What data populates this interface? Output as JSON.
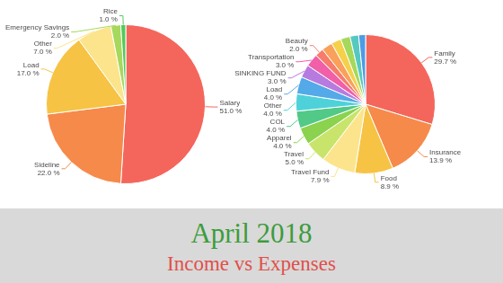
{
  "chart_data": [
    {
      "type": "pie",
      "categories": [
        "Salary",
        "Sideline",
        "Load",
        "Other",
        "Emergency Savings",
        "Rice"
      ],
      "values": [
        51.0,
        22.0,
        17.0,
        7.0,
        2.0,
        1.0
      ],
      "value_labels": [
        "51.0 %",
        "22.0 %",
        "17.0 %",
        "7.0 %",
        "2.0 %",
        "1.0 %"
      ],
      "colors": [
        "#f4665c",
        "#f68a4b",
        "#f6c344",
        "#fce48c",
        "#a6d85c",
        "#52c95a"
      ],
      "data_labels": true
    },
    {
      "type": "pie",
      "categories": [
        "Family",
        "Insurance",
        "Food",
        "Travel Fund",
        "Travel",
        "Apparel",
        "COL",
        "Other",
        "Load",
        "SINKING FUND",
        "Transportation",
        "Beauty",
        null,
        null,
        null,
        null,
        null
      ],
      "values": [
        29.7,
        13.9,
        8.9,
        7.9,
        5.0,
        4.0,
        4.0,
        4.0,
        4.0,
        3.0,
        3.0,
        2.0,
        2.5,
        2.3,
        2.2,
        2.0,
        1.6
      ],
      "value_labels": [
        "29.7 %",
        "13.9 %",
        "8.9 %",
        "7.9 %",
        "5.0 %",
        "4.0 %",
        "4.0 %",
        "4.0 %",
        "4.0 %",
        "3.0 %",
        "3.0 %",
        "2.0 %",
        null,
        null,
        null,
        null,
        null
      ],
      "colors": [
        "#f4665c",
        "#f68a4b",
        "#f6c344",
        "#fce48c",
        "#c9e46b",
        "#8bd24f",
        "#52c987",
        "#4fd1d9",
        "#54a9e8",
        "#b77be0",
        "#f05fa8",
        "#f77c6b",
        "#f9a15a",
        "#f5d04a",
        "#a6d85c",
        "#55c9c0",
        "#4e9be6"
      ],
      "data_labels": true
    }
  ],
  "footer": {
    "title": "April 2018",
    "subtitle": "Income vs Expenses"
  }
}
